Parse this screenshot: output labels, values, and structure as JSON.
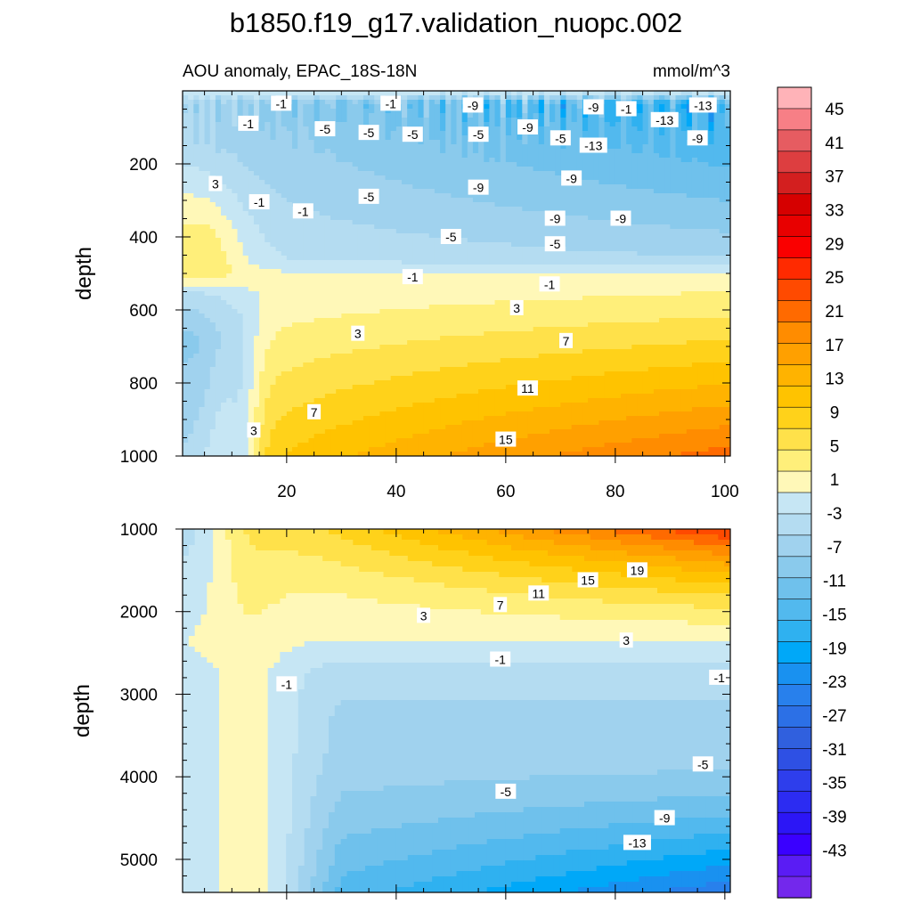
{
  "chart_data": {
    "type": "heatmap",
    "title": "b1850.f19_g17.validation_nuopc.002",
    "subtitle_left": "AOU anomaly, EPAC_18S-18N",
    "subtitle_right": "mmol/m^3",
    "xlabel": "",
    "ylabel": "depth",
    "xlim": [
      1,
      101
    ],
    "x_ticks": [
      20,
      40,
      60,
      80,
      100
    ],
    "panels": [
      {
        "name": "upper",
        "ylim": [
          0,
          1000
        ],
        "y_ticks": [
          200,
          400,
          600,
          800,
          1000
        ],
        "y_inverted": true,
        "contour_labels": [
          {
            "text": "-1",
            "x": 13,
            "y": 90
          },
          {
            "text": "-1",
            "x": 19,
            "y": 35
          },
          {
            "text": "-1",
            "x": 39,
            "y": 35
          },
          {
            "text": "-9",
            "x": 54,
            "y": 40
          },
          {
            "text": "-9",
            "x": 76,
            "y": 45
          },
          {
            "text": "-1",
            "x": 82,
            "y": 50
          },
          {
            "text": "-13",
            "x": 89,
            "y": 80
          },
          {
            "text": "-13",
            "x": 96,
            "y": 40
          },
          {
            "text": "-5",
            "x": 27,
            "y": 105
          },
          {
            "text": "-5",
            "x": 35,
            "y": 115
          },
          {
            "text": "-5",
            "x": 43,
            "y": 120
          },
          {
            "text": "-5",
            "x": 55,
            "y": 120
          },
          {
            "text": "-9",
            "x": 64,
            "y": 100
          },
          {
            "text": "-5",
            "x": 70,
            "y": 130
          },
          {
            "text": "-13",
            "x": 76,
            "y": 150
          },
          {
            "text": "-9",
            "x": 95,
            "y": 130
          },
          {
            "text": "3",
            "x": 7,
            "y": 255
          },
          {
            "text": "-1",
            "x": 15,
            "y": 305
          },
          {
            "text": "-1",
            "x": 23,
            "y": 330
          },
          {
            "text": "-5",
            "x": 35,
            "y": 290
          },
          {
            "text": "-9",
            "x": 55,
            "y": 265
          },
          {
            "text": "-9",
            "x": 72,
            "y": 240
          },
          {
            "text": "-9",
            "x": 69,
            "y": 350
          },
          {
            "text": "-9",
            "x": 81,
            "y": 350
          },
          {
            "text": "-5",
            "x": 50,
            "y": 400
          },
          {
            "text": "-5",
            "x": 69,
            "y": 420
          },
          {
            "text": "-1",
            "x": 43,
            "y": 510
          },
          {
            "text": "-1",
            "x": 68,
            "y": 530
          },
          {
            "text": "3",
            "x": 62,
            "y": 595
          },
          {
            "text": "3",
            "x": 33,
            "y": 665
          },
          {
            "text": "7",
            "x": 71,
            "y": 685
          },
          {
            "text": "11",
            "x": 64,
            "y": 815
          },
          {
            "text": "7",
            "x": 25,
            "y": 880
          },
          {
            "text": "3",
            "x": 14,
            "y": 930
          },
          {
            "text": "15",
            "x": 60,
            "y": 955
          }
        ]
      },
      {
        "name": "lower",
        "ylim": [
          1000,
          5400
        ],
        "y_ticks": [
          1000,
          2000,
          3000,
          4000,
          5000
        ],
        "y_inverted": true,
        "contour_labels": [
          {
            "text": "19",
            "x": 84,
            "y": 1500
          },
          {
            "text": "15",
            "x": 75,
            "y": 1620
          },
          {
            "text": "11",
            "x": 66,
            "y": 1780
          },
          {
            "text": "7",
            "x": 59,
            "y": 1920
          },
          {
            "text": "3",
            "x": 45,
            "y": 2050
          },
          {
            "text": "3",
            "x": 82,
            "y": 2350
          },
          {
            "text": "-1",
            "x": 59,
            "y": 2580
          },
          {
            "text": "-1",
            "x": 99,
            "y": 2800
          },
          {
            "text": "-1",
            "x": 20,
            "y": 2880
          },
          {
            "text": "-5",
            "x": 96,
            "y": 3850
          },
          {
            "text": "-5",
            "x": 60,
            "y": 4180
          },
          {
            "text": "-9",
            "x": 89,
            "y": 4500
          },
          {
            "text": "-13",
            "x": 84,
            "y": 4800
          }
        ]
      }
    ],
    "colorbar": {
      "labels": [
        "45",
        "41",
        "37",
        "33",
        "29",
        "25",
        "21",
        "17",
        "13",
        "9",
        "5",
        "1",
        "-3",
        "-7",
        "-11",
        "-15",
        "-19",
        "-23",
        "-27",
        "-31",
        "-35",
        "-39",
        "-43"
      ],
      "colors": [
        "#FFB3B8",
        "#F77F86",
        "#E65C61",
        "#DD3E40",
        "#D31F1F",
        "#D60000",
        "#E80000",
        "#FA0000",
        "#FF2A00",
        "#FF4A00",
        "#FF6A00",
        "#FF8C00",
        "#FFA000",
        "#FFB300",
        "#FFC300",
        "#FFD21A",
        "#FFE14A",
        "#FFEF7A",
        "#FFF8B8",
        "#C6E6F4",
        "#B4DCF1",
        "#A0D2EE",
        "#8ACAEC",
        "#6FC1EC",
        "#52B9EE",
        "#2FB1F0",
        "#00A8F8",
        "#1991F0",
        "#2880EC",
        "#2C70E6",
        "#3060DE",
        "#2E50E4",
        "#2E3EEC",
        "#2C2CF2",
        "#2C16F6",
        "#3A00FF",
        "#5A1CF4",
        "#7328EC"
      ]
    }
  }
}
